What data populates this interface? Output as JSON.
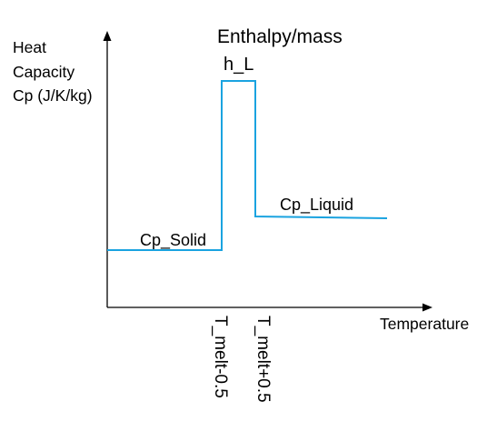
{
  "diagram": {
    "y_axis_label": [
      "Heat",
      "Capacity",
      "Cp (J/K/kg)"
    ],
    "x_axis_label": "Temperature",
    "title": "Enthalpy/mass",
    "peak_label": "h_L",
    "solid_label": "Cp_Solid",
    "liquid_label": "Cp_Liquid",
    "tick_low_label": "T_melt-0.5",
    "tick_high_label": "T_melt+0.5",
    "colors": {
      "curve": "#1aa3e0",
      "axes": "#000000"
    }
  }
}
